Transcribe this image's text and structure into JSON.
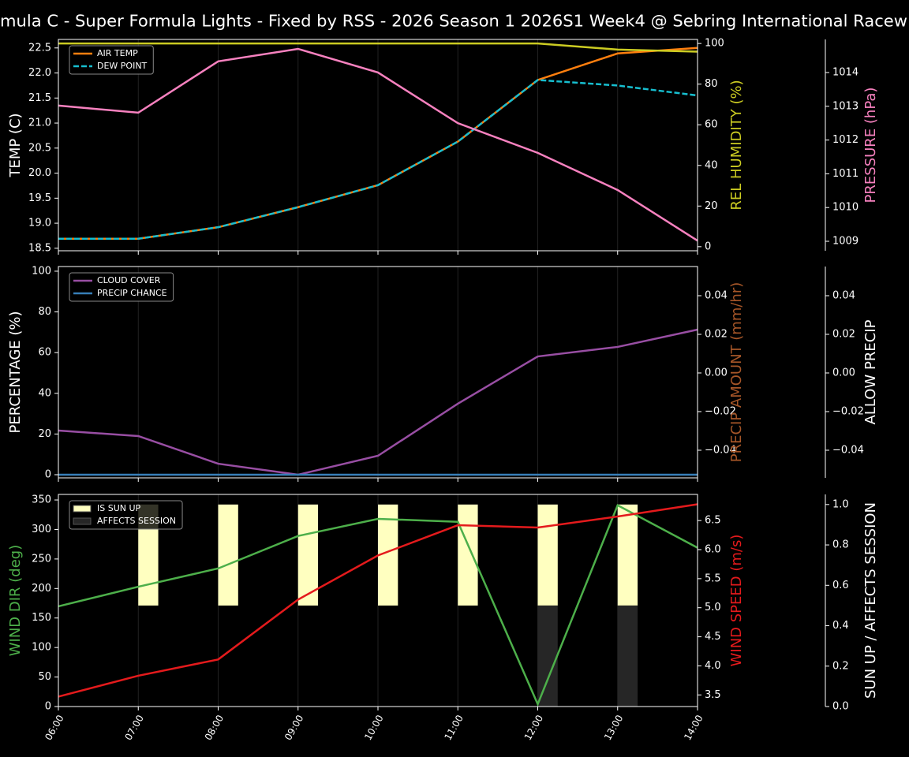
{
  "chart_data": [
    {
      "type": "line",
      "title": "mula C - Super Formula Lights - Fixed by RSS - 2026 Season 1 2026S1 Week4 @ Sebring International Racew",
      "ylabel": "TEMP (C)",
      "ycolor": "#ffffff",
      "y2label": "REL HUMIDITY (%)",
      "y2color": "#cccc22",
      "y3label": "PRESSURE (hPa)",
      "y3color": "#f781bf",
      "ylim": [
        18.45,
        22.67
      ],
      "yticks": [
        18.5,
        {
          "value": 19,
          "label": "19.0"
        },
        19.5,
        {
          "value": 20,
          "label": "20.0"
        },
        20.5,
        {
          "value": 21,
          "label": "21.0"
        },
        21.5,
        {
          "value": 22,
          "label": "22.0"
        },
        22.5
      ],
      "y2lim": [
        -2,
        102
      ],
      "y2ticks": [
        0,
        20,
        40,
        60,
        80,
        100
      ],
      "y3lim": [
        1008.72,
        1014.98
      ],
      "y3ticks": [
        1009,
        1010,
        1011,
        1012,
        1013,
        1014
      ],
      "grid_x": true,
      "legend": "upper left",
      "series": [
        {
          "name": "AIR TEMP",
          "color": "#ff7f0e",
          "values": [
            18.69,
            18.69,
            18.92,
            19.32,
            19.76,
            20.63,
            21.86,
            22.39,
            22.5
          ]
        },
        {
          "name": "DEW POINT",
          "color": "#17becf",
          "dashed": true,
          "values": [
            18.69,
            18.69,
            18.92,
            19.32,
            19.76,
            20.63,
            21.86,
            21.75,
            21.55
          ]
        },
        {
          "color": "#cccc22",
          "axis": "y2",
          "values": [
            100,
            100,
            100,
            100,
            100,
            100,
            100,
            97,
            96
          ]
        },
        {
          "color": "#f781bf",
          "axis": "y3",
          "values": [
            1013.02,
            1012.81,
            1014.33,
            1014.7,
            1014.0,
            1012.5,
            1011.62,
            1010.52,
            1009.02
          ]
        }
      ]
    },
    {
      "type": "line",
      "ylabel": "PERCENTAGE (%)",
      "ycolor": "#ffffff",
      "y2label": "PRECIP AMOUNT (mm/hr)",
      "y2color": "#a65628",
      "y3label": "ALLOW PRECIP",
      "y3color": "#ffffff",
      "ylim": [
        -1.55,
        102.3
      ],
      "yticks": [
        0,
        20,
        40,
        60,
        80,
        100
      ],
      "y2lim": [
        -0.0543,
        0.0551
      ],
      "y2ticks": [
        {
          "value": -0.04,
          "label": "−0.04"
        },
        {
          "value": -0.02,
          "label": "−0.02"
        },
        {
          "value": 0,
          "label": "0.00"
        },
        0.02,
        0.04
      ],
      "y3lim": [
        -0.0543,
        0.0551
      ],
      "y3ticks": [
        {
          "value": -0.04,
          "label": "−0.04"
        },
        {
          "value": -0.02,
          "label": "−0.02"
        },
        {
          "value": 0,
          "label": "0.00"
        },
        0.02,
        0.04
      ],
      "grid_x": true,
      "legend": "upper left",
      "series": [
        {
          "name": "CLOUD COVER",
          "color": "#984ea3",
          "values": [
            21.7,
            19,
            5.4,
            0,
            9.3,
            34.9,
            58.1,
            62.8,
            71.3
          ]
        },
        {
          "name": "PRECIP CHANCE",
          "color": "#377eb8",
          "values": [
            0,
            0,
            0,
            0,
            0,
            0,
            0,
            0,
            0
          ]
        }
      ]
    },
    {
      "type": "combo",
      "categories": [
        "06:00",
        "07:00",
        "08:00",
        "09:00",
        "10:00",
        "11:00",
        "12:00",
        "13:00",
        "14:00"
      ],
      "ylabel": "WIND DIR (deg)",
      "ycolor": "#4daf4a",
      "y2label": "WIND SPEED (m/s)",
      "y2color": "#e41a1c",
      "y3label": "SUN UP / AFFECTS SESSION",
      "y3color": "#ffffff",
      "ylim": [
        0,
        359.4
      ],
      "yticks": [
        0,
        50,
        100,
        150,
        200,
        250,
        300,
        350
      ],
      "y2lim": [
        3.3,
        6.95
      ],
      "y2ticks": [
        3.5,
        {
          "value": 4,
          "label": "4.0"
        },
        4.5,
        {
          "value": 5,
          "label": "5.0"
        },
        5.5,
        {
          "value": 6,
          "label": "6.0"
        },
        6.5
      ],
      "y3lim": [
        0,
        1.05
      ],
      "y3ticks": [
        {
          "value": 0,
          "label": "0.0"
        },
        0.2,
        0.4,
        0.6,
        0.8,
        {
          "value": 1,
          "label": "1.0"
        }
      ],
      "grid_x": true,
      "legend": "upper left",
      "series": [
        {
          "name": "IS SUN UP",
          "type": "bar",
          "axis": "y3",
          "base": 0.5,
          "color": "#ffffc0",
          "values": [
            null,
            1,
            1,
            1,
            1,
            1,
            1,
            1,
            null
          ]
        },
        {
          "name": "AFFECTS SESSION",
          "type": "bar",
          "axis": "y3",
          "color": "#262626",
          "values": [
            0,
            0,
            0,
            0,
            0,
            0,
            0.5,
            0.5,
            0
          ]
        },
        {
          "type": "line",
          "color": "#4daf4a",
          "values": [
            169.8,
            203,
            234,
            289,
            318,
            313,
            4,
            341,
            269
          ]
        },
        {
          "type": "line",
          "color": "#e41a1c",
          "axis": "y2",
          "values": [
            3.47,
            3.83,
            4.11,
            5.14,
            5.9,
            6.42,
            6.38,
            6.57,
            6.78
          ]
        }
      ]
    }
  ]
}
